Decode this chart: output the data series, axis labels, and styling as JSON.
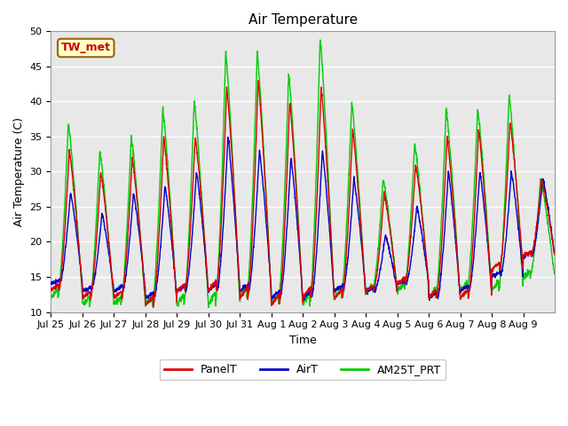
{
  "title": "Air Temperature",
  "xlabel": "Time",
  "ylabel": "Air Temperature (C)",
  "ylim": [
    10,
    50
  ],
  "annotation_text": "TW_met",
  "legend_labels": [
    "PanelT",
    "AirT",
    "AM25T_PRT"
  ],
  "line_colors": [
    "#dd0000",
    "#0000cc",
    "#00cc00"
  ],
  "bg_color": "#e8e8e8",
  "fig_bg": "#ffffff",
  "tick_labels": [
    "Jul 25",
    "Jul 26",
    "Jul 27",
    "Jul 28",
    "Jul 29",
    "Jul 30",
    "Jul 31",
    "Aug 1",
    "Aug 2",
    "Aug 3",
    "Aug 4",
    "Aug 5",
    "Aug 6",
    "Aug 7",
    "Aug 8",
    "Aug 9"
  ],
  "num_days": 16,
  "points_per_day": 144,
  "panel_peaks": [
    33,
    30,
    32,
    35,
    35,
    42,
    43,
    40,
    42,
    36,
    27,
    31,
    35,
    36,
    37,
    29
  ],
  "panel_mins": [
    13,
    12,
    12,
    11,
    13,
    13,
    12,
    11,
    12,
    12,
    13,
    14,
    12,
    12,
    16,
    18
  ],
  "air_peaks": [
    27,
    24,
    27,
    28,
    30,
    35,
    33,
    32,
    33,
    29,
    21,
    25,
    30,
    30,
    30,
    29
  ],
  "air_mins": [
    14,
    13,
    13,
    12,
    13,
    13,
    13,
    12,
    12,
    13,
    13,
    14,
    12,
    13,
    15,
    18
  ],
  "green_peaks": [
    37,
    33,
    35,
    39,
    40,
    47,
    47,
    44,
    49,
    40,
    29,
    34,
    39,
    39,
    41,
    29
  ],
  "green_mins": [
    12,
    11,
    11,
    11,
    11,
    11,
    12,
    11,
    11,
    12,
    13,
    13,
    12,
    13,
    13,
    15
  ]
}
